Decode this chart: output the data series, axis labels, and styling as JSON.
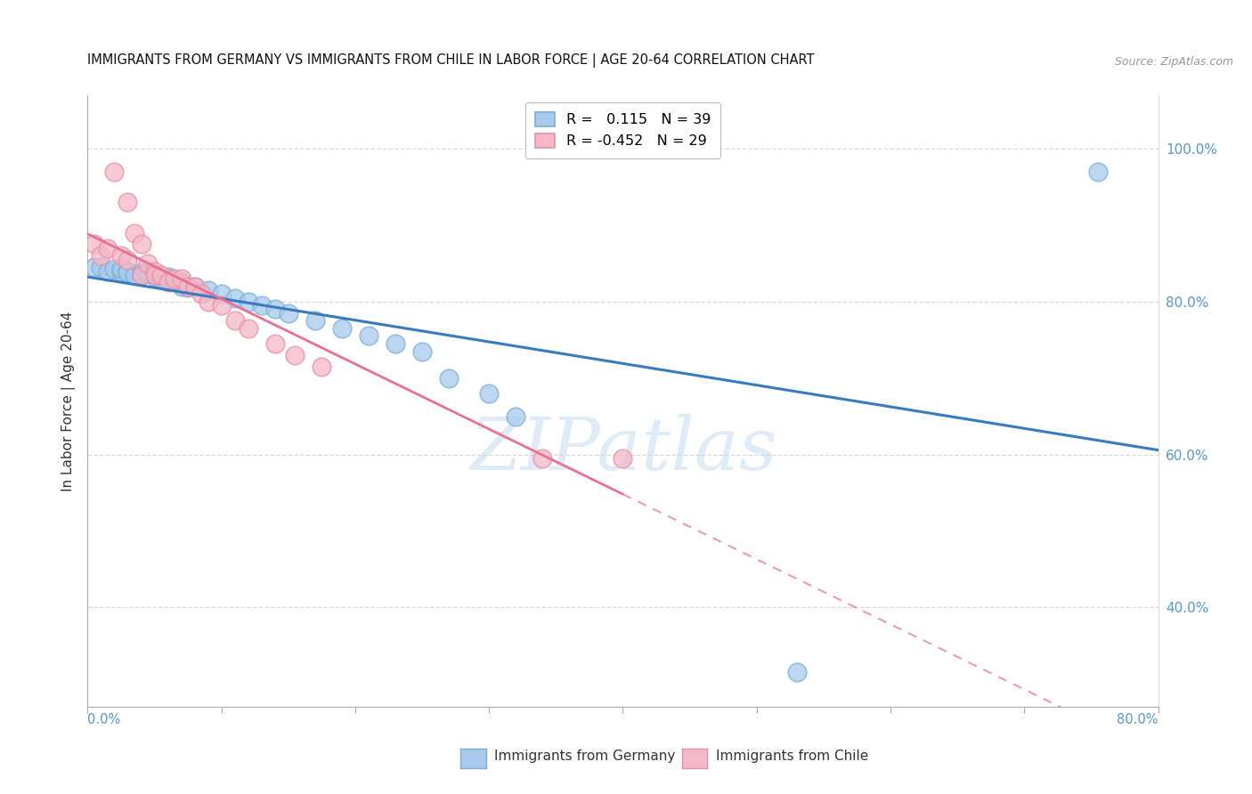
{
  "title": "IMMIGRANTS FROM GERMANY VS IMMIGRANTS FROM CHILE IN LABOR FORCE | AGE 20-64 CORRELATION CHART",
  "source": "Source: ZipAtlas.com",
  "ylabel": "In Labor Force | Age 20-64",
  "legend_germany": "Immigrants from Germany",
  "legend_chile": "Immigrants from Chile",
  "R_germany": 0.115,
  "N_germany": 39,
  "R_chile": -0.452,
  "N_chile": 29,
  "xlim": [
    0.0,
    0.8
  ],
  "ylim": [
    0.27,
    1.07
  ],
  "yticks": [
    0.4,
    0.6,
    0.8,
    1.0
  ],
  "ytick_labels": [
    "40.0%",
    "60.0%",
    "80.0%",
    "100.0%"
  ],
  "germany_color": "#a8caec",
  "germany_edge_color": "#7aafd4",
  "chile_color": "#f4b8c8",
  "chile_edge_color": "#e890a8",
  "germany_line_color": "#3a7abf",
  "chile_line_color": "#e87090",
  "germany_x": [
    0.005,
    0.01,
    0.015,
    0.02,
    0.025,
    0.025,
    0.03,
    0.03,
    0.035,
    0.04,
    0.04,
    0.045,
    0.05,
    0.05,
    0.055,
    0.06,
    0.06,
    0.065,
    0.07,
    0.07,
    0.075,
    0.08,
    0.09,
    0.1,
    0.11,
    0.12,
    0.13,
    0.14,
    0.15,
    0.17,
    0.19,
    0.21,
    0.23,
    0.25,
    0.27,
    0.3,
    0.32,
    0.53,
    0.755
  ],
  "germany_y": [
    0.845,
    0.845,
    0.84,
    0.843,
    0.84,
    0.843,
    0.84,
    0.838,
    0.835,
    0.838,
    0.835,
    0.837,
    0.835,
    0.832,
    0.83,
    0.833,
    0.83,
    0.828,
    0.82,
    0.825,
    0.818,
    0.82,
    0.815,
    0.81,
    0.805,
    0.8,
    0.795,
    0.79,
    0.785,
    0.775,
    0.765,
    0.755,
    0.745,
    0.735,
    0.7,
    0.68,
    0.65,
    0.315,
    0.97
  ],
  "chile_x": [
    0.005,
    0.01,
    0.015,
    0.02,
    0.025,
    0.03,
    0.03,
    0.035,
    0.04,
    0.04,
    0.045,
    0.05,
    0.05,
    0.055,
    0.06,
    0.065,
    0.07,
    0.075,
    0.08,
    0.085,
    0.09,
    0.1,
    0.11,
    0.12,
    0.14,
    0.155,
    0.175,
    0.34,
    0.4
  ],
  "chile_y": [
    0.875,
    0.86,
    0.87,
    0.97,
    0.86,
    0.93,
    0.855,
    0.89,
    0.875,
    0.835,
    0.85,
    0.84,
    0.835,
    0.835,
    0.825,
    0.83,
    0.83,
    0.82,
    0.82,
    0.81,
    0.8,
    0.795,
    0.775,
    0.765,
    0.745,
    0.73,
    0.715,
    0.595,
    0.595
  ],
  "watermark_text": "ZIPatlas",
  "background_color": "#ffffff",
  "grid_color": "#d0d0d0",
  "grid_style": "--"
}
